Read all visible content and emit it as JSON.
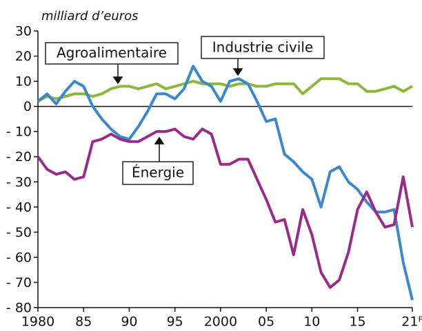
{
  "chart_data": {
    "type": "line",
    "y_label": "milliard d’euros",
    "x": [
      1980,
      1981,
      1982,
      1983,
      1984,
      1985,
      1986,
      1987,
      1988,
      1989,
      1990,
      1991,
      1992,
      1993,
      1994,
      1995,
      1996,
      1997,
      1998,
      1999,
      2000,
      2001,
      2002,
      2003,
      2004,
      2005,
      2006,
      2007,
      2008,
      2009,
      2010,
      2011,
      2012,
      2013,
      2014,
      2015,
      2016,
      2017,
      2018,
      2019,
      2020,
      2021
    ],
    "series": [
      {
        "name": "Agroalimentaire",
        "color": "#8cb83a",
        "values": [
          2,
          4,
          3,
          4,
          5,
          5,
          4,
          5,
          7,
          8,
          8,
          7,
          8,
          9,
          7,
          8,
          9,
          10,
          9,
          9,
          9,
          8,
          9,
          9,
          8,
          8,
          9,
          9,
          9,
          5,
          8,
          11,
          11,
          11,
          9,
          9,
          6,
          6,
          7,
          8,
          6,
          8
        ]
      },
      {
        "name": "Industrie civile",
        "color": "#3a88d0",
        "values": [
          2,
          5,
          1,
          6,
          10,
          8,
          0,
          -5,
          -9,
          -12,
          -13,
          -8,
          -2,
          5,
          5,
          3,
          7,
          16,
          10,
          8,
          2,
          10,
          11,
          9,
          2,
          -6,
          -5,
          -19,
          -22,
          -26,
          -29,
          -40,
          -26,
          -24,
          -30,
          -33,
          -38,
          -42,
          -42,
          -41,
          -62,
          -77
        ]
      },
      {
        "name": "Énergie",
        "color": "#9a2b8b",
        "values": [
          -20,
          -25,
          -27,
          -26,
          -29,
          -28,
          -14,
          -13,
          -11,
          -13,
          -14,
          -14,
          -12,
          -10,
          -10,
          -9,
          -12,
          -13,
          -9,
          -11,
          -23,
          -23,
          -21,
          -21,
          -29,
          -37,
          -46,
          -45,
          -59,
          -41,
          -51,
          -66,
          -72,
          -69,
          -58,
          -41,
          -34,
          -42,
          -48,
          -47,
          -28,
          -48
        ]
      }
    ],
    "xlim": [
      1980,
      2021
    ],
    "ylim": [
      -80,
      30
    ],
    "xticks": [
      1980,
      {
        "value": 1985,
        "label": "85"
      },
      {
        "value": 1990,
        "label": "90"
      },
      {
        "value": 1995,
        "label": "95"
      },
      2000,
      {
        "value": 2005,
        "label": "05"
      },
      {
        "value": 2010,
        "label": "10"
      },
      {
        "value": 2015,
        "label": "15"
      },
      {
        "value": 2021,
        "label": "21ᴾ"
      }
    ],
    "yticks": [
      30,
      20,
      10,
      0,
      {
        "value": -10,
        "label": "- 10"
      },
      {
        "value": -20,
        "label": "- 20"
      },
      {
        "value": -30,
        "label": "- 30"
      },
      {
        "value": -40,
        "label": "- 40"
      },
      {
        "value": -50,
        "label": "- 50"
      },
      {
        "value": -60,
        "label": "- 60"
      },
      {
        "value": -70,
        "label": "- 70"
      },
      {
        "value": -80,
        "label": "- 80"
      }
    ]
  }
}
